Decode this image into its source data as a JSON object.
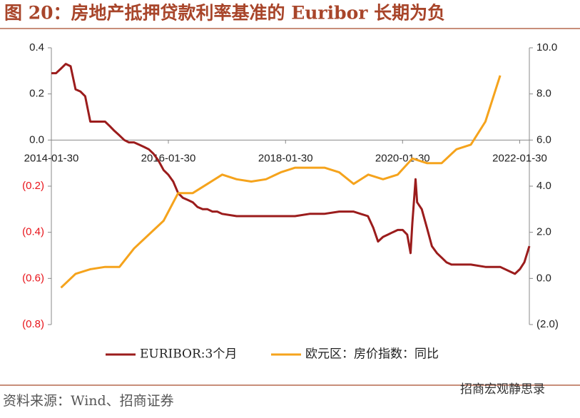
{
  "chart_data": {
    "type": "line",
    "title": "图 20：房地产抵押贷款利率基准的 Euribor 长期为负",
    "source": "资料来源：Wind、招商证券",
    "watermark": "招商宏观静思录",
    "xlim": [
      "2014-01-30",
      "2022-03-31"
    ],
    "xticks": [
      "2014-01-30",
      "2016-01-30",
      "2018-01-30",
      "2020-01-30",
      "2022-01-30"
    ],
    "ylim": [
      -0.8,
      0.4
    ],
    "yticks": [
      {
        "value": -0.8,
        "label": "(0.8)"
      },
      {
        "value": -0.6,
        "label": "(0.6)"
      },
      {
        "value": -0.4,
        "label": "(0.4)"
      },
      {
        "value": -0.2,
        "label": "(0.2)"
      },
      {
        "value": 0,
        "label": "0.0"
      },
      0.2,
      0.4
    ],
    "y2lim": [
      -2,
      10
    ],
    "y2ticks": [
      {
        "value": -2,
        "label": "(2.0)"
      },
      {
        "value": 0,
        "label": "0.0"
      },
      {
        "value": 2,
        "label": "2.0"
      },
      {
        "value": 4,
        "label": "4.0"
      },
      {
        "value": 6,
        "label": "6.0"
      },
      {
        "value": 8,
        "label": "8.0"
      },
      {
        "value": 10,
        "label": "10.0"
      }
    ],
    "negative_tick_color": "#e8141b",
    "legend": "bottom",
    "series": [
      {
        "name": "EURIBOR:3个月",
        "color": "#9b1c1c",
        "x": [
          "2014-01-30",
          "2014-02-28",
          "2014-03-31",
          "2014-04-30",
          "2014-05-30",
          "2014-06-30",
          "2014-07-31",
          "2014-08-29",
          "2014-09-30",
          "2014-10-31",
          "2014-11-28",
          "2014-12-31",
          "2015-01-30",
          "2015-02-27",
          "2015-03-31",
          "2015-04-30",
          "2015-05-29",
          "2015-06-30",
          "2015-07-31",
          "2015-08-31",
          "2015-09-30",
          "2015-10-30",
          "2015-11-30",
          "2015-12-31",
          "2016-01-29",
          "2016-02-29",
          "2016-03-31",
          "2016-04-29",
          "2016-05-31",
          "2016-06-30",
          "2016-07-29",
          "2016-08-31",
          "2016-09-30",
          "2016-10-31",
          "2016-11-30",
          "2016-12-30",
          "2017-03-31",
          "2017-06-30",
          "2017-09-29",
          "2017-12-29",
          "2018-03-30",
          "2018-06-29",
          "2018-09-28",
          "2018-12-31",
          "2019-03-29",
          "2019-06-28",
          "2019-07-31",
          "2019-08-30",
          "2019-09-30",
          "2019-10-31",
          "2019-11-29",
          "2019-12-31",
          "2020-01-31",
          "2020-02-28",
          "2020-03-20",
          "2020-03-31",
          "2020-04-20",
          "2020-04-30",
          "2020-05-29",
          "2020-06-30",
          "2020-07-31",
          "2020-08-31",
          "2020-09-30",
          "2020-10-30",
          "2020-11-30",
          "2020-12-31",
          "2021-03-31",
          "2021-06-30",
          "2021-09-30",
          "2021-11-30",
          "2021-12-31",
          "2022-01-31",
          "2022-02-28",
          "2022-03-31"
        ],
        "values": [
          0.29,
          0.29,
          0.31,
          0.33,
          0.32,
          0.22,
          0.21,
          0.19,
          0.08,
          0.08,
          0.08,
          0.08,
          0.06,
          0.04,
          0.02,
          0.0,
          -0.01,
          -0.01,
          -0.02,
          -0.03,
          -0.04,
          -0.06,
          -0.09,
          -0.13,
          -0.15,
          -0.18,
          -0.23,
          -0.25,
          -0.26,
          -0.27,
          -0.29,
          -0.3,
          -0.3,
          -0.31,
          -0.31,
          -0.32,
          -0.33,
          -0.33,
          -0.33,
          -0.33,
          -0.33,
          -0.32,
          -0.32,
          -0.31,
          -0.31,
          -0.33,
          -0.38,
          -0.44,
          -0.42,
          -0.41,
          -0.4,
          -0.39,
          -0.39,
          -0.41,
          -0.49,
          -0.36,
          -0.17,
          -0.27,
          -0.3,
          -0.38,
          -0.46,
          -0.49,
          -0.51,
          -0.53,
          -0.54,
          -0.54,
          -0.54,
          -0.55,
          -0.55,
          -0.57,
          -0.58,
          -0.56,
          -0.53,
          -0.46
        ]
      },
      {
        "name": "欧元区：房价指数：同比",
        "color": "#f5a31c",
        "axis": "y2",
        "x": [
          "2014-03-31",
          "2014-06-30",
          "2014-09-30",
          "2014-12-31",
          "2015-03-31",
          "2015-06-30",
          "2015-09-30",
          "2015-12-31",
          "2016-03-31",
          "2016-06-30",
          "2016-09-30",
          "2016-12-31",
          "2017-03-31",
          "2017-06-30",
          "2017-09-30",
          "2017-12-31",
          "2018-03-31",
          "2018-06-30",
          "2018-09-30",
          "2018-12-31",
          "2019-03-31",
          "2019-06-30",
          "2019-09-30",
          "2019-12-31",
          "2020-03-31",
          "2020-06-30",
          "2020-09-30",
          "2020-12-31",
          "2021-03-31",
          "2021-06-30",
          "2021-09-30"
        ],
        "values": [
          -0.4,
          0.2,
          0.4,
          0.5,
          0.5,
          1.3,
          1.9,
          2.5,
          3.7,
          3.7,
          4.1,
          4.5,
          4.3,
          4.2,
          4.3,
          4.6,
          4.8,
          4.8,
          4.8,
          4.6,
          4.1,
          4.5,
          4.3,
          4.5,
          5.2,
          5.0,
          5.0,
          5.6,
          5.8,
          6.8,
          8.8
        ]
      }
    ]
  }
}
